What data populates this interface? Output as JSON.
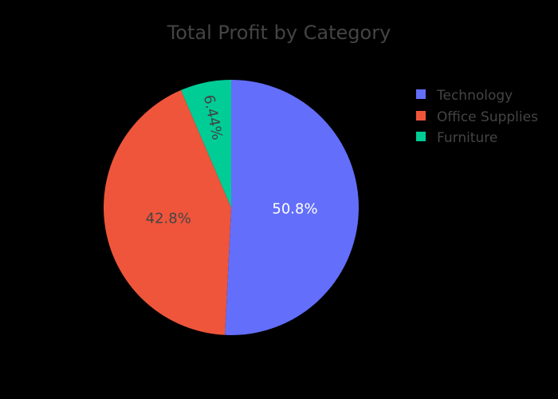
{
  "chart_data": {
    "type": "pie",
    "title": "Total Profit by Category",
    "categories": [
      "Technology",
      "Office Supplies",
      "Furniture"
    ],
    "values": [
      50.8,
      42.8,
      6.44
    ],
    "labels": [
      "50.8%",
      "42.8%",
      "6.44%"
    ],
    "colors": [
      "#636efa",
      "#ef553b",
      "#00cc96"
    ],
    "label_colors": [
      "#ffffff",
      "#444444",
      "#444444"
    ],
    "legend": {
      "entries": [
        "Technology",
        "Office Supplies",
        "Furniture"
      ],
      "placement": "top-right"
    },
    "start_angle": "12 o'clock",
    "direction": "clockwise"
  }
}
